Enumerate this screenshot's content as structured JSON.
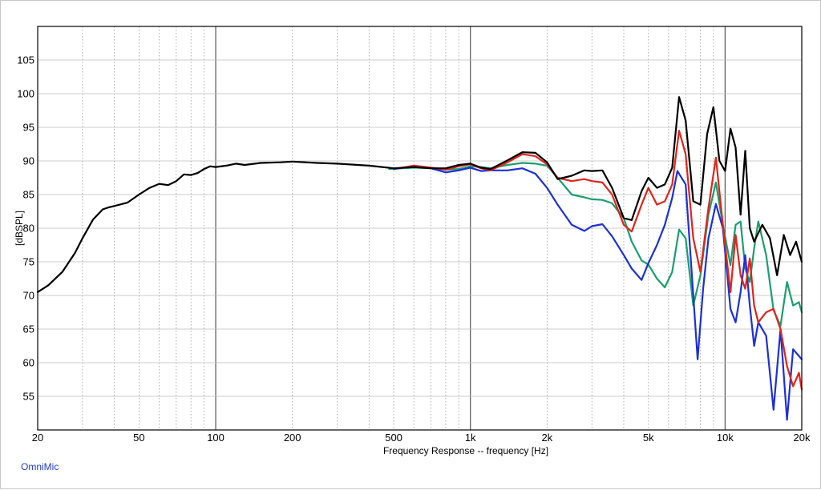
{
  "brand_label": "OmniMic",
  "chart_data": {
    "type": "line",
    "title": "",
    "xlabel": "Frequency Response -- frequency [Hz]",
    "ylabel": "[dBSPL]",
    "x_scale": "log",
    "xlim": [
      20,
      20000
    ],
    "ylim": [
      50,
      110
    ],
    "grid": true,
    "x_tick_values": [
      20,
      50,
      100,
      200,
      500,
      1000,
      2000,
      5000,
      10000,
      20000
    ],
    "x_tick_labels": [
      "20",
      "50",
      "100",
      "200",
      "500",
      "1k",
      "2k",
      "5k",
      "10k",
      "20k"
    ],
    "y_ticks": [
      55,
      60,
      65,
      70,
      75,
      80,
      85,
      90,
      95,
      100,
      105
    ],
    "series": [
      {
        "color": "#1a9e6e",
        "x": [
          480,
          600,
          700,
          800,
          900,
          1000,
          1100,
          1200,
          1400,
          1600,
          1800,
          2000,
          2200,
          2500,
          2800,
          3000,
          3300,
          3600,
          4000,
          4300,
          4700,
          5000,
          5400,
          5800,
          6200,
          6600,
          7000,
          7500,
          8000,
          8600,
          9200,
          9800,
          10500,
          11000,
          11500,
          12000,
          12500,
          13000,
          13500,
          14500,
          15500,
          16500,
          17500,
          18500,
          19500,
          20000
        ],
        "y": [
          88.8,
          89.0,
          88.9,
          88.7,
          88.8,
          89.2,
          89.1,
          88.9,
          89.4,
          89.7,
          89.6,
          89.3,
          87.5,
          85.0,
          84.6,
          84.3,
          84.2,
          83.7,
          81.5,
          78.0,
          75.2,
          74.6,
          72.5,
          71.2,
          73.5,
          79.8,
          78.5,
          68.5,
          73.0,
          82.0,
          86.8,
          80.5,
          74.5,
          80.5,
          81.0,
          74.0,
          72.0,
          77.0,
          81.0,
          76.0,
          67.8,
          65.5,
          72.0,
          68.5,
          69.0,
          67.5
        ]
      },
      {
        "color": "#1c2fd9",
        "x": [
          500,
          600,
          700,
          800,
          900,
          1000,
          1100,
          1200,
          1400,
          1600,
          1800,
          2000,
          2200,
          2500,
          2800,
          3000,
          3300,
          3600,
          4000,
          4300,
          4700,
          5000,
          5400,
          5800,
          6200,
          6500,
          7000,
          7500,
          7800,
          8200,
          8600,
          9200,
          9800,
          10500,
          11000,
          11500,
          12000,
          12500,
          13000,
          13500,
          14500,
          15500,
          16500,
          17500,
          18500,
          19500,
          20000
        ],
        "y": [
          88.8,
          89.2,
          88.9,
          88.3,
          88.6,
          89.0,
          88.5,
          88.6,
          88.6,
          88.9,
          88.1,
          86.0,
          83.5,
          80.5,
          79.6,
          80.3,
          80.6,
          78.8,
          76.0,
          74.0,
          72.3,
          74.8,
          77.5,
          80.5,
          84.5,
          88.5,
          86.5,
          70.0,
          60.5,
          71.0,
          78.5,
          83.6,
          80.0,
          68.0,
          66.0,
          70.5,
          76.0,
          68.5,
          62.5,
          66.0,
          64.0,
          53.0,
          65.0,
          51.5,
          62.0,
          61.0,
          60.5
        ]
      },
      {
        "color": "#e0241c",
        "x": [
          520,
          600,
          700,
          800,
          900,
          1000,
          1100,
          1200,
          1400,
          1600,
          1800,
          2000,
          2200,
          2500,
          2800,
          3000,
          3300,
          3600,
          4000,
          4300,
          4700,
          5000,
          5400,
          5800,
          6200,
          6600,
          7000,
          7500,
          8000,
          8600,
          9200,
          9800,
          10500,
          11000,
          11500,
          12000,
          12500,
          13000,
          13500,
          14500,
          15500,
          16500,
          17500,
          18500,
          19500,
          20000
        ],
        "y": [
          88.9,
          89.3,
          89.0,
          88.7,
          89.2,
          89.5,
          88.9,
          88.6,
          89.8,
          91.0,
          90.7,
          89.5,
          87.5,
          87.0,
          87.3,
          87.0,
          86.8,
          85.0,
          80.5,
          79.5,
          83.5,
          86.0,
          83.5,
          84.0,
          86.5,
          94.5,
          91.0,
          78.5,
          73.5,
          83.0,
          90.5,
          80.5,
          70.5,
          79.0,
          73.0,
          71.0,
          75.5,
          68.5,
          66.0,
          67.5,
          68.0,
          65.0,
          59.5,
          56.5,
          58.5,
          56.0
        ]
      },
      {
        "color": "#000000",
        "x": [
          20,
          22,
          25,
          28,
          30,
          33,
          36,
          38,
          40,
          45,
          50,
          55,
          60,
          65,
          70,
          75,
          80,
          85,
          90,
          95,
          100,
          110,
          120,
          130,
          150,
          180,
          200,
          250,
          300,
          400,
          500,
          600,
          700,
          800,
          900,
          1000,
          1100,
          1200,
          1400,
          1600,
          1800,
          2000,
          2200,
          2500,
          2800,
          3000,
          3300,
          3600,
          4000,
          4300,
          4700,
          5000,
          5400,
          5800,
          6200,
          6600,
          7000,
          7500,
          8000,
          8500,
          9000,
          9500,
          10000,
          10500,
          11000,
          11500,
          12000,
          12500,
          13000,
          14000,
          15000,
          16000,
          17000,
          18000,
          19000,
          20000
        ],
        "y": [
          70.5,
          71.5,
          73.5,
          76.3,
          78.5,
          81.3,
          82.8,
          83.1,
          83.3,
          83.8,
          85.0,
          86.0,
          86.6,
          86.4,
          87.0,
          88.0,
          87.9,
          88.2,
          88.8,
          89.2,
          89.1,
          89.3,
          89.6,
          89.4,
          89.7,
          89.8,
          89.9,
          89.7,
          89.6,
          89.3,
          88.9,
          89.1,
          88.9,
          88.9,
          89.4,
          89.6,
          89.0,
          88.8,
          90.1,
          91.3,
          91.2,
          89.8,
          87.3,
          87.8,
          88.6,
          88.5,
          88.6,
          86.0,
          81.5,
          81.2,
          85.5,
          87.5,
          86.0,
          86.5,
          89.0,
          99.5,
          96.0,
          84.0,
          83.5,
          94.0,
          98.0,
          90.0,
          88.5,
          94.8,
          92.0,
          82.0,
          91.5,
          80.0,
          78.0,
          80.5,
          78.5,
          73.0,
          79.0,
          76.0,
          78.0,
          75.0
        ]
      }
    ]
  }
}
